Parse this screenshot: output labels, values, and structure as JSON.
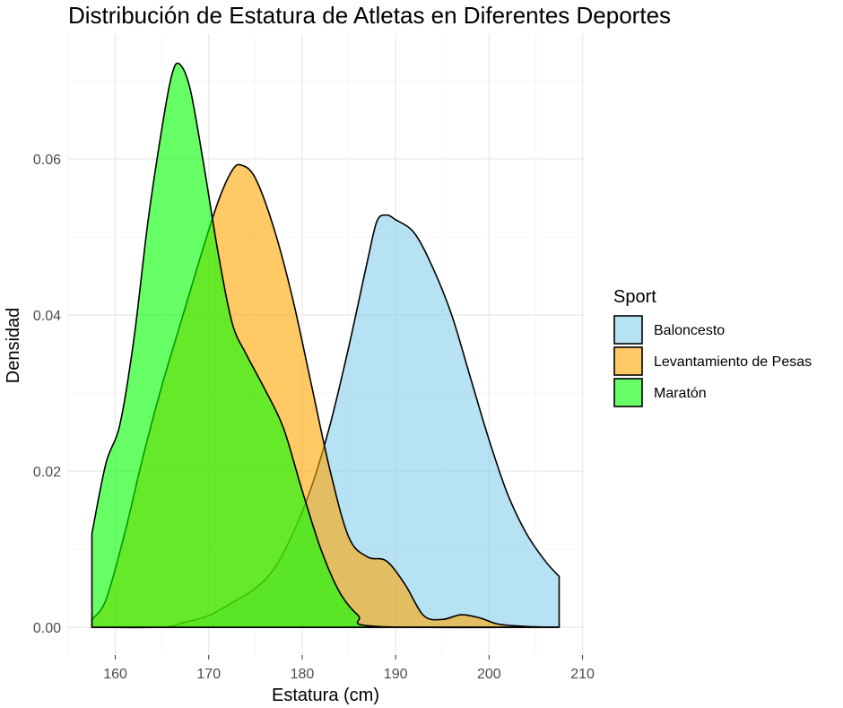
{
  "chart_data": {
    "type": "area",
    "title": "Distribución de Estatura de Atletas en Diferentes Deportes",
    "xlabel": "Estatura (cm)",
    "ylabel": "Densidad",
    "xlim": [
      155,
      210
    ],
    "ylim": [
      0,
      0.072
    ],
    "x_ticks": [
      "160",
      "170",
      "180",
      "190",
      "200",
      "210"
    ],
    "y_ticks": [
      "0.00",
      "0.02",
      "0.04",
      "0.06"
    ],
    "grid": true,
    "legend": {
      "title": "Sport",
      "position": "right"
    },
    "series": [
      {
        "name": "Baloncesto",
        "color": "#87CEEB",
        "points": [
          [
            157.5,
            0
          ],
          [
            165,
            0
          ],
          [
            167,
            0.0005
          ],
          [
            170,
            0.0015
          ],
          [
            173,
            0.0035
          ],
          [
            175,
            0.005
          ],
          [
            177,
            0.0075
          ],
          [
            179,
            0.012
          ],
          [
            181,
            0.018
          ],
          [
            183,
            0.026
          ],
          [
            185,
            0.036
          ],
          [
            187,
            0.047
          ],
          [
            188,
            0.052
          ],
          [
            189,
            0.0528
          ],
          [
            190,
            0.0522
          ],
          [
            192,
            0.0505
          ],
          [
            194,
            0.046
          ],
          [
            196,
            0.04
          ],
          [
            198,
            0.032
          ],
          [
            200,
            0.024
          ],
          [
            202,
            0.017
          ],
          [
            204,
            0.012
          ],
          [
            206,
            0.0085
          ],
          [
            207.5,
            0.0065
          ]
        ]
      },
      {
        "name": "Levantamiento de Pesas",
        "color": "#FFA500",
        "points": [
          [
            157.5,
            0.001
          ],
          [
            159,
            0.0035
          ],
          [
            161,
            0.012
          ],
          [
            163,
            0.022
          ],
          [
            165,
            0.031
          ],
          [
            167,
            0.039
          ],
          [
            169,
            0.047
          ],
          [
            171,
            0.0545
          ],
          [
            172.5,
            0.0585
          ],
          [
            173.5,
            0.0592
          ],
          [
            175,
            0.0575
          ],
          [
            177,
            0.051
          ],
          [
            179,
            0.042
          ],
          [
            181,
            0.031
          ],
          [
            183,
            0.02
          ],
          [
            185,
            0.0115
          ],
          [
            187,
            0.009
          ],
          [
            189,
            0.0085
          ],
          [
            191,
            0.0055
          ],
          [
            193,
            0.0015
          ],
          [
            195,
            0.001
          ],
          [
            197,
            0.0016
          ],
          [
            199,
            0.0012
          ],
          [
            201,
            0.0004
          ],
          [
            204,
            0.0001
          ],
          [
            207.5,
            0
          ]
        ]
      },
      {
        "name": "Maratón",
        "color": "#00FF00",
        "points": [
          [
            157.5,
            0.012
          ],
          [
            159,
            0.021
          ],
          [
            160.5,
            0.026
          ],
          [
            162,
            0.037
          ],
          [
            163.5,
            0.052
          ],
          [
            165,
            0.064
          ],
          [
            166,
            0.0705
          ],
          [
            166.8,
            0.0722
          ],
          [
            168,
            0.069
          ],
          [
            169.5,
            0.059
          ],
          [
            171,
            0.048
          ],
          [
            172.5,
            0.039
          ],
          [
            174,
            0.035
          ],
          [
            176,
            0.0305
          ],
          [
            178,
            0.0255
          ],
          [
            180,
            0.0175
          ],
          [
            182,
            0.01
          ],
          [
            184,
            0.0045
          ],
          [
            186,
            0.0015
          ],
          [
            188,
            0.0001
          ],
          [
            207.5,
            0
          ]
        ]
      }
    ]
  }
}
